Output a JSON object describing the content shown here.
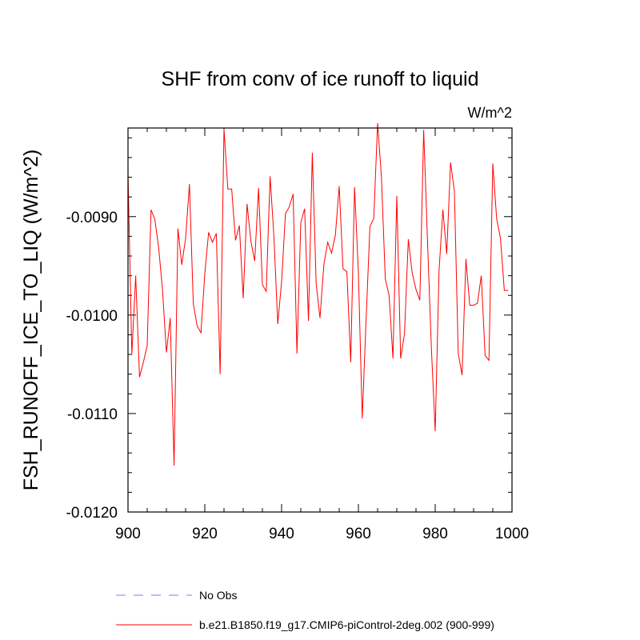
{
  "chart_data": {
    "type": "line",
    "title": "SHF from conv of ice runoff to liquid",
    "units": "W/m^2",
    "ylabel": "FSH_RUNOFF_ICE_TO_LIQ  (W/m^2)",
    "xlabel": "",
    "xlim": [
      900,
      1000
    ],
    "ylim": [
      -0.012,
      -0.0081
    ],
    "xticks": [
      900,
      920,
      940,
      960,
      980,
      1000
    ],
    "xtick_labels": [
      "900",
      "920",
      "940",
      "960",
      "980",
      "1000"
    ],
    "yticks": [
      -0.009,
      -0.01,
      -0.011,
      -0.012
    ],
    "ytick_labels": [
      "-0.0090",
      "-0.0100",
      "-0.0110",
      "-0.0120"
    ],
    "series": [
      {
        "name": "b.e21.B1850.f19_g17.CMIP6-piControl-2deg.002 (900-999)",
        "color": "#ff0000",
        "style": "solid",
        "x": [
          900,
          901,
          902,
          903,
          904,
          905,
          906,
          907,
          908,
          909,
          910,
          911,
          912,
          913,
          914,
          915,
          916,
          917,
          918,
          919,
          920,
          921,
          922,
          923,
          924,
          925,
          926,
          927,
          928,
          929,
          930,
          931,
          932,
          933,
          934,
          935,
          936,
          937,
          938,
          939,
          940,
          941,
          942,
          943,
          944,
          945,
          946,
          947,
          948,
          949,
          950,
          951,
          952,
          953,
          954,
          955,
          956,
          957,
          958,
          959,
          960,
          961,
          962,
          963,
          964,
          965,
          966,
          967,
          968,
          969,
          970,
          971,
          972,
          973,
          974,
          975,
          976,
          977,
          978,
          979,
          980,
          981,
          982,
          983,
          984,
          985,
          986,
          987,
          988,
          989,
          990,
          991,
          992,
          993,
          994,
          995,
          996,
          997,
          998,
          999
        ],
        "values": [
          -0.00855,
          -0.0104,
          -0.0096,
          -0.01063,
          -0.01048,
          -0.01031,
          -0.00893,
          -0.00903,
          -0.00932,
          -0.00975,
          -0.01038,
          -0.01003,
          -0.01153,
          -0.00912,
          -0.00949,
          -0.00922,
          -0.00867,
          -0.00988,
          -0.01011,
          -0.01018,
          -0.00958,
          -0.00916,
          -0.00926,
          -0.00917,
          -0.0106,
          -0.00811,
          -0.00872,
          -0.00872,
          -0.00924,
          -0.00909,
          -0.00983,
          -0.00887,
          -0.00925,
          -0.00945,
          -0.00871,
          -0.00969,
          -0.00976,
          -0.00859,
          -0.0092,
          -0.01009,
          -0.00966,
          -0.00897,
          -0.0089,
          -0.00877,
          -0.01039,
          -0.00906,
          -0.00892,
          -0.01006,
          -0.00835,
          -0.00968,
          -0.01003,
          -0.00949,
          -0.00926,
          -0.00937,
          -0.00919,
          -0.00869,
          -0.00953,
          -0.00956,
          -0.01048,
          -0.0087,
          -0.00957,
          -0.01105,
          -0.01005,
          -0.0091,
          -0.00902,
          -0.00805,
          -0.0086,
          -0.00963,
          -0.0098,
          -0.01044,
          -0.00879,
          -0.01044,
          -0.01019,
          -0.00923,
          -0.00957,
          -0.00974,
          -0.00985,
          -0.00812,
          -0.00925,
          -0.01033,
          -0.01118,
          -0.00955,
          -0.00893,
          -0.00938,
          -0.00845,
          -0.00874,
          -0.01039,
          -0.01061,
          -0.00943,
          -0.0099,
          -0.0099,
          -0.00988,
          -0.0096,
          -0.01041,
          -0.01046,
          -0.00846,
          -0.00902,
          -0.00922,
          -0.00975,
          -0.00975
        ]
      },
      {
        "name": "No Obs",
        "color": "#7b7bff",
        "style": "dashed",
        "x": [],
        "values": []
      }
    ],
    "legend_position": "bottom-left"
  }
}
